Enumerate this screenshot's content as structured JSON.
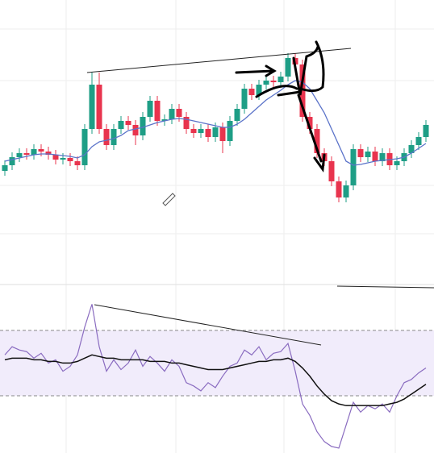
{
  "chart_data": [
    {
      "type": "candlestick",
      "open": [
        88,
        95,
        105,
        110,
        108,
        115,
        112,
        108,
        102,
        104,
        100,
        95,
        140,
        195,
        140,
        120,
        140,
        150,
        145,
        132,
        155,
        175,
        150,
        152,
        165,
        155,
        140,
        135,
        140,
        130,
        142,
        125,
        150,
        165,
        190,
        182,
        195,
        200,
        198,
        205,
        228,
        220,
        155,
        140,
        110,
        100,
        75,
        55,
        70,
        115,
        105,
        112,
        100,
        110,
        95,
        100,
        110,
        120,
        130
      ],
      "high": [
        101,
        111,
        116,
        116,
        121,
        121,
        118,
        114,
        110,
        110,
        106,
        146,
        210,
        210,
        146,
        146,
        156,
        156,
        151,
        161,
        181,
        181,
        158,
        171,
        171,
        161,
        146,
        146,
        146,
        148,
        148,
        156,
        171,
        196,
        196,
        201,
        206,
        206,
        211,
        234,
        234,
        226,
        161,
        146,
        116,
        106,
        81,
        76,
        121,
        121,
        118,
        118,
        116,
        116,
        106,
        116,
        126,
        136,
        151
      ],
      "low": [
        82,
        89,
        99,
        102,
        102,
        106,
        102,
        96,
        96,
        94,
        89,
        89,
        134,
        134,
        114,
        114,
        134,
        139,
        120,
        126,
        149,
        144,
        144,
        146,
        149,
        134,
        129,
        129,
        124,
        124,
        110,
        119,
        144,
        159,
        176,
        176,
        189,
        192,
        192,
        199,
        214,
        149,
        134,
        104,
        94,
        69,
        49,
        49,
        64,
        99,
        99,
        94,
        94,
        89,
        89,
        94,
        104,
        114,
        124
      ],
      "close": [
        95,
        105,
        110,
        108,
        115,
        112,
        108,
        102,
        104,
        100,
        95,
        140,
        195,
        140,
        120,
        140,
        150,
        145,
        132,
        155,
        175,
        150,
        152,
        165,
        155,
        140,
        135,
        140,
        130,
        142,
        125,
        150,
        165,
        190,
        182,
        195,
        200,
        198,
        205,
        228,
        220,
        155,
        140,
        110,
        100,
        75,
        55,
        70,
        115,
        105,
        112,
        100,
        110,
        95,
        100,
        110,
        120,
        130,
        145
      ],
      "up_color": "#1e9e86",
      "down_color": "#e8344e",
      "series": [
        {
          "color": "#5b73c9",
          "values": [
            100,
            102,
            104,
            106,
            108,
            109,
            109,
            108,
            107,
            106,
            104,
            108,
            118,
            124,
            126,
            128,
            132,
            138,
            140,
            142,
            145,
            148,
            150,
            152,
            153,
            152,
            150,
            148,
            146,
            144,
            142,
            142,
            146,
            152,
            160,
            168,
            176,
            182,
            188,
            195,
            200,
            198,
            190,
            175,
            160,
            140,
            120,
            100,
            95,
            96,
            98,
            100,
            101,
            102,
            103,
            105,
            110,
            116,
            122
          ]
        }
      ],
      "ylim": [
        0,
        300
      ]
    },
    {
      "type": "line",
      "series": [
        {
          "color": "#8a6cc0",
          "values": [
            55,
            60,
            58,
            57,
            53,
            56,
            50,
            52,
            45,
            48,
            55,
            72,
            86,
            60,
            45,
            52,
            46,
            50,
            58,
            48,
            54,
            50,
            45,
            52,
            48,
            38,
            36,
            33,
            38,
            35,
            42,
            48,
            50,
            58,
            55,
            60,
            52,
            56,
            57,
            62,
            45,
            25,
            18,
            8,
            2,
            -1,
            -2,
            12,
            26,
            20,
            24,
            22,
            25,
            20,
            30,
            38,
            40,
            44,
            47
          ]
        },
        {
          "color": "#111111",
          "values": [
            52,
            53,
            53,
            53,
            52,
            52,
            51,
            51,
            50,
            50,
            51,
            53,
            55,
            54,
            53,
            53,
            52,
            52,
            52,
            52,
            51,
            51,
            51,
            50,
            50,
            49,
            48,
            47,
            46,
            46,
            46,
            47,
            48,
            49,
            50,
            51,
            51,
            52,
            52,
            53,
            51,
            47,
            42,
            36,
            31,
            27,
            25,
            24,
            24,
            24,
            24,
            24,
            24,
            25,
            26,
            28,
            31,
            34,
            37
          ]
        }
      ],
      "bands": [
        30,
        70
      ],
      "band_color": "#f1ecfb",
      "ylim": [
        -5,
        100
      ]
    }
  ]
}
